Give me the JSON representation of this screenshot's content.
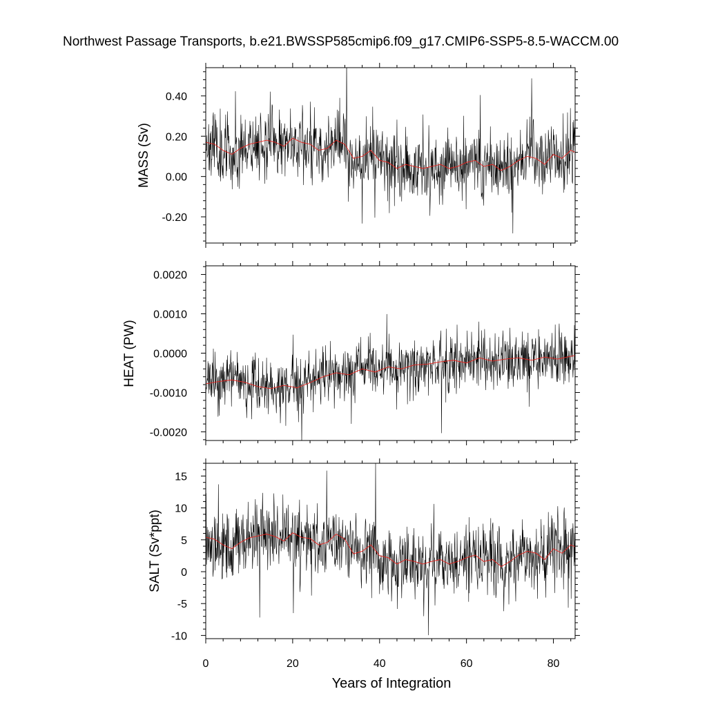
{
  "title": "Northwest Passage Transports, b.e21.BWSSP585cmip6.f09_g17.CMIP6-SSP5-8.5-WACCM.00",
  "colors": {
    "raw_series": "#000000",
    "smoothed_series": "#e8211c",
    "background": "#ffffff"
  },
  "chart_data": [
    {
      "type": "line",
      "panel": "mass",
      "ylabel": "MASS (Sv)",
      "xlabel": "",
      "xlim": [
        0,
        85
      ],
      "ylim": [
        -0.33,
        0.54
      ],
      "yticks": [
        -0.2,
        0.0,
        0.2,
        0.4
      ],
      "ytick_labels": [
        "-0.20",
        "0.00",
        "0.20",
        "0.40"
      ],
      "grid": false,
      "smoothed_anchors": {
        "x": [
          0,
          2,
          4,
          6,
          8,
          10,
          12,
          14,
          16,
          18,
          20,
          22,
          24,
          26,
          28,
          30,
          32,
          34,
          36,
          38,
          40,
          42,
          44,
          46,
          48,
          50,
          52,
          54,
          56,
          58,
          60,
          62,
          64,
          66,
          68,
          70,
          72,
          74,
          76,
          78,
          80,
          82,
          84,
          85
        ],
        "y": [
          0.17,
          0.16,
          0.13,
          0.11,
          0.14,
          0.16,
          0.17,
          0.18,
          0.17,
          0.15,
          0.19,
          0.17,
          0.16,
          0.13,
          0.14,
          0.18,
          0.16,
          0.09,
          0.1,
          0.13,
          0.08,
          0.07,
          0.04,
          0.06,
          0.05,
          0.04,
          0.05,
          0.06,
          0.04,
          0.05,
          0.07,
          0.08,
          0.05,
          0.06,
          0.03,
          0.05,
          0.08,
          0.1,
          0.09,
          0.06,
          0.11,
          0.09,
          0.13,
          0.12
        ]
      },
      "noise_sd": 0.085,
      "seed": 11
    },
    {
      "type": "line",
      "panel": "heat",
      "ylabel": "HEAT (PW)",
      "xlabel": "",
      "xlim": [
        0,
        85
      ],
      "ylim": [
        -0.00222,
        0.00222
      ],
      "yticks": [
        -0.002,
        -0.001,
        0.0,
        0.001,
        0.002
      ],
      "ytick_labels": [
        "-0.0020",
        "-0.0010",
        "0.0000",
        "0.0010",
        "0.0020"
      ],
      "grid": false,
      "smoothed_anchors": {
        "x": [
          0,
          3,
          6,
          9,
          12,
          15,
          18,
          21,
          24,
          27,
          30,
          33,
          36,
          39,
          42,
          45,
          48,
          51,
          54,
          57,
          60,
          63,
          66,
          69,
          72,
          75,
          78,
          81,
          84,
          85
        ],
        "y": [
          -0.00078,
          -0.00072,
          -0.00068,
          -0.00074,
          -0.00085,
          -0.0009,
          -0.00082,
          -0.00088,
          -0.00075,
          -0.0006,
          -0.0005,
          -0.00055,
          -0.0004,
          -0.00048,
          -0.00035,
          -0.0004,
          -0.0003,
          -0.00028,
          -0.00022,
          -0.00018,
          -0.00025,
          -0.00012,
          -0.0002,
          -0.00015,
          -0.00012,
          -0.00018,
          -0.0001,
          -0.00015,
          -8e-05,
          -6e-05
        ]
      },
      "noise_sd": 0.00035,
      "seed": 23
    },
    {
      "type": "line",
      "panel": "salt",
      "ylabel": "SALT (Sv*ppt)",
      "xlabel": "Years of Integration",
      "xlim": [
        0,
        85
      ],
      "xticks": [
        0,
        20,
        40,
        60,
        80
      ],
      "xtick_labels": [
        "0",
        "20",
        "40",
        "60",
        "80"
      ],
      "ylim": [
        -10.5,
        17.0
      ],
      "yticks": [
        -10,
        -5,
        0,
        5,
        10,
        15
      ],
      "ytick_labels": [
        "-10",
        "-5",
        "0",
        "5",
        "10",
        "15"
      ],
      "grid": false,
      "smoothed_anchors": {
        "x": [
          0,
          2,
          4,
          6,
          8,
          10,
          12,
          14,
          16,
          18,
          20,
          22,
          24,
          26,
          28,
          30,
          32,
          34,
          36,
          38,
          40,
          42,
          44,
          46,
          48,
          50,
          52,
          54,
          56,
          58,
          60,
          62,
          64,
          66,
          68,
          70,
          72,
          74,
          76,
          78,
          80,
          82,
          84,
          85
        ],
        "y": [
          5.4,
          5.1,
          4.2,
          3.6,
          4.6,
          5.3,
          5.6,
          5.9,
          5.5,
          4.8,
          6.1,
          5.4,
          5.2,
          4.2,
          4.6,
          5.9,
          5.1,
          2.8,
          3.2,
          4.2,
          2.5,
          2.2,
          1.2,
          1.9,
          1.6,
          1.2,
          1.6,
          1.9,
          1.2,
          1.6,
          2.2,
          2.6,
          1.6,
          1.9,
          0.8,
          1.6,
          2.6,
          3.2,
          2.9,
          1.9,
          3.6,
          2.9,
          4.2,
          3.9
        ]
      },
      "noise_sd": 2.8,
      "seed": 37
    }
  ]
}
